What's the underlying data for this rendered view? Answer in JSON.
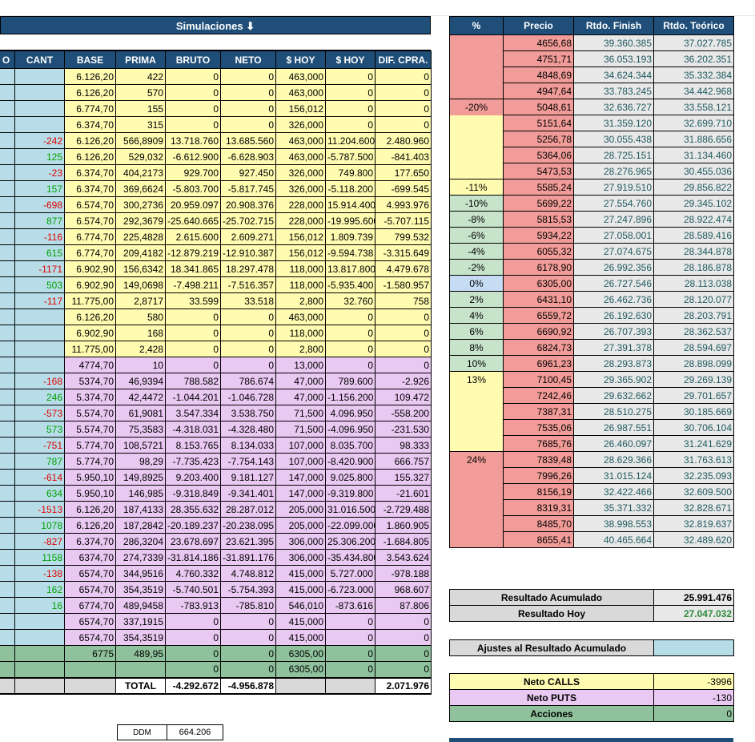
{
  "banner": {
    "title": "Simulaciones",
    "icon": "arrow-down-icon"
  },
  "left_headers": [
    "O",
    "CANT",
    "BASE",
    "PRIMA",
    "BRUTO",
    "NETO",
    "$ HOY",
    "$ HOY",
    "DIF. CPRA."
  ],
  "calls_rows": [
    [
      "",
      "",
      "6.126,20",
      "422",
      "0",
      "0",
      "463,000",
      "0",
      "0"
    ],
    [
      "",
      "",
      "6.126,20",
      "570",
      "0",
      "0",
      "463,000",
      "0",
      "0"
    ],
    [
      "",
      "",
      "6.774,70",
      "155",
      "0",
      "0",
      "156,012",
      "0",
      "0"
    ],
    [
      "",
      "",
      "6.374,70",
      "315",
      "0",
      "0",
      "326,000",
      "0",
      "0"
    ],
    [
      "",
      "-242",
      "6.126,20",
      "566,8909",
      "13.718.760",
      "13.685.560",
      "463,000",
      "11.204.600",
      "2.480.960"
    ],
    [
      "",
      "125",
      "6.126,20",
      "529,032",
      "-6.612.900",
      "-6.628.903",
      "463,000",
      "-5.787.500",
      "-841.403"
    ],
    [
      "",
      "-23",
      "6.374,70",
      "404,2173",
      "929.700",
      "927.450",
      "326,000",
      "749.800",
      "177.650"
    ],
    [
      "",
      "157",
      "6.374,70",
      "369,6624",
      "-5.803.700",
      "-5.817.745",
      "326,000",
      "-5.118.200",
      "-699.545"
    ],
    [
      "",
      "-698",
      "6.574,70",
      "300,2736",
      "20.959.097",
      "20.908.376",
      "228,000",
      "15.914.400",
      "4.993.976"
    ],
    [
      "",
      "877",
      "6.574,70",
      "292,3679",
      "-25.640.665",
      "-25.702.715",
      "228,000",
      "-19.995.600",
      "-5.707.115"
    ],
    [
      "",
      "-116",
      "6.774,70",
      "225,4828",
      "2.615.600",
      "2.609.271",
      "156,012",
      "1.809.739",
      "799.532"
    ],
    [
      "",
      "615",
      "6.774,70",
      "209,4182",
      "-12.879.219",
      "-12.910.387",
      "156,012",
      "-9.594.738",
      "-3.315.649"
    ],
    [
      "",
      "-1171",
      "6.902,90",
      "156,6342",
      "18.341.865",
      "18.297.478",
      "118,000",
      "13.817.800",
      "4.479.678"
    ],
    [
      "",
      "503",
      "6.902,90",
      "149,0698",
      "-7.498.211",
      "-7.516.357",
      "118,000",
      "-5.935.400",
      "-1.580.957"
    ],
    [
      "",
      "-117",
      "11.775,00",
      "2,8717",
      "33.599",
      "33.518",
      "2,800",
      "32.760",
      "758"
    ],
    [
      "",
      "",
      "6.126,20",
      "580",
      "0",
      "0",
      "463,000",
      "0",
      "0"
    ],
    [
      "",
      "",
      "6.902,90",
      "168",
      "0",
      "0",
      "118,000",
      "0",
      "0"
    ],
    [
      "",
      "",
      "11.775,00",
      "2,428",
      "0",
      "0",
      "2,800",
      "0",
      "0"
    ]
  ],
  "puts_rows": [
    [
      "",
      "",
      "4774,70",
      "10",
      "0",
      "0",
      "13,000",
      "0",
      "0"
    ],
    [
      "",
      "-168",
      "5374,70",
      "46,9394",
      "788.582",
      "786.674",
      "47,000",
      "789.600",
      "-2.926"
    ],
    [
      "",
      "246",
      "5.374,70",
      "42,4472",
      "-1.044.201",
      "-1.046.728",
      "47,000",
      "-1.156.200",
      "109.472"
    ],
    [
      "",
      "-573",
      "5.574,70",
      "61,9081",
      "3.547.334",
      "3.538.750",
      "71,500",
      "4.096.950",
      "-558.200"
    ],
    [
      "",
      "573",
      "5.574,70",
      "75,3583",
      "-4.318.031",
      "-4.328.480",
      "71,500",
      "-4.096.950",
      "-231.530"
    ],
    [
      "",
      "-751",
      "5.774,70",
      "108,5721",
      "8.153.765",
      "8.134.033",
      "107,000",
      "8.035.700",
      "98.333"
    ],
    [
      "",
      "787",
      "5.774,70",
      "98,29",
      "-7.735.423",
      "-7.754.143",
      "107,000",
      "-8.420.900",
      "666.757"
    ],
    [
      "",
      "-614",
      "5.950,10",
      "149,8925",
      "9.203.400",
      "9.181.127",
      "147,000",
      "9.025.800",
      "155.327"
    ],
    [
      "",
      "634",
      "5.950,10",
      "146,985",
      "-9.318.849",
      "-9.341.401",
      "147,000",
      "-9.319.800",
      "-21.601"
    ],
    [
      "",
      "-1513",
      "6.126,20",
      "187,4133",
      "28.355.632",
      "28.287.012",
      "205,000",
      "31.016.500",
      "-2.729.488"
    ],
    [
      "",
      "1078",
      "6.126,20",
      "187,2842",
      "-20.189.237",
      "-20.238.095",
      "205,000",
      "-22.099.000",
      "1.860.905"
    ],
    [
      "",
      "-827",
      "6.374,70",
      "286,3204",
      "23.678.697",
      "23.621.395",
      "306,000",
      "25.306.200",
      "-1.684.805"
    ],
    [
      "",
      "1158",
      "6374,70",
      "274,7339",
      "-31.814.186",
      "-31.891.176",
      "306,000",
      "-35.434.800",
      "3.543.624"
    ],
    [
      "",
      "-138",
      "6574,70",
      "344,9516",
      "4.760.332",
      "4.748.812",
      "415,000",
      "5.727.000",
      "-978.188"
    ],
    [
      "",
      "162",
      "6574,70",
      "354,3519",
      "-5.740.501",
      "-5.754.393",
      "415,000",
      "-6.723.000",
      "968.607"
    ],
    [
      "",
      "16",
      "6774,70",
      "489,9458",
      "-783.913",
      "-785.810",
      "546,010",
      "-873.616",
      "87.806"
    ],
    [
      "",
      "",
      "6574,70",
      "337,1915",
      "0",
      "0",
      "415,000",
      "0",
      "0"
    ],
    [
      "",
      "",
      "6574,70",
      "354,3519",
      "0",
      "0",
      "415,000",
      "0",
      "0"
    ]
  ],
  "stock_rows": [
    [
      "",
      "",
      "6775",
      "489,95",
      "0",
      "0",
      "6305,00",
      "0",
      "0"
    ],
    [
      "",
      "",
      "",
      "",
      "0",
      "0",
      "6305,00",
      "0",
      "0"
    ]
  ],
  "totals": {
    "label": "TOTAL",
    "bruto": "-4.292.672",
    "neto": "-4.956.878",
    "dif": "2.071.976"
  },
  "ddm": {
    "label": "DDM",
    "value": "664.206"
  },
  "right_headers": [
    "%",
    "Precio",
    "Rtdo. Finish",
    "Rtdo. Teórico"
  ],
  "right_rows": [
    [
      "",
      "4656,68",
      "39.360.385",
      "37.027.785"
    ],
    [
      "",
      "4751,71",
      "36.053.193",
      "36.202.351"
    ],
    [
      "",
      "4848,69",
      "34.624.344",
      "35.332.384"
    ],
    [
      "",
      "4947,64",
      "33.783.245",
      "34.442.968"
    ],
    [
      "-20%",
      "5048,61",
      "32.636.727",
      "33.558.121"
    ],
    [
      "",
      "5151,64",
      "31.359.120",
      "32.699.710"
    ],
    [
      "",
      "5256,78",
      "30.055.438",
      "31.886.656"
    ],
    [
      "",
      "5364,06",
      "28.725.151",
      "31.134.460"
    ],
    [
      "",
      "5473,53",
      "28.276.965",
      "30.455.036"
    ],
    [
      "-11%",
      "5585,24",
      "27.919.510",
      "29.856.822"
    ],
    [
      "-10%",
      "5699,22",
      "27.554.760",
      "29.345.102"
    ],
    [
      "-8%",
      "5815,53",
      "27.247.896",
      "28.922.474"
    ],
    [
      "-6%",
      "5934,22",
      "27.058.001",
      "28.589.416"
    ],
    [
      "-4%",
      "6055,32",
      "27.074.675",
      "28.344.878"
    ],
    [
      "-2%",
      "6178,90",
      "26.992.356",
      "28.186.878"
    ],
    [
      "0%",
      "6305,00",
      "26.727.546",
      "28.113.038"
    ],
    [
      "2%",
      "6431,10",
      "26.462.736",
      "28.120.077"
    ],
    [
      "4%",
      "6559,72",
      "26.192.630",
      "28.203.791"
    ],
    [
      "6%",
      "6690,92",
      "26.707.393",
      "28.362.537"
    ],
    [
      "8%",
      "6824,73",
      "27.391.378",
      "28.594.697"
    ],
    [
      "10%",
      "6961,23",
      "28.293.873",
      "28.898.099"
    ],
    [
      "13%",
      "7100,45",
      "29.365.902",
      "29.269.139"
    ],
    [
      "",
      "7242,46",
      "29.632.662",
      "29.701.657"
    ],
    [
      "",
      "7387,31",
      "28.510.275",
      "30.185.669"
    ],
    [
      "",
      "7535,06",
      "26.987.551",
      "30.706.104"
    ],
    [
      "",
      "7685,76",
      "26.460.097",
      "31.241.629"
    ],
    [
      "24%",
      "7839,48",
      "28.629.366",
      "31.763.613"
    ],
    [
      "",
      "7996,26",
      "31.015.124",
      "32.235.093"
    ],
    [
      "",
      "8156,19",
      "32.422.466",
      "32.609.500"
    ],
    [
      "",
      "8319,31",
      "35.371.332",
      "32.828.671"
    ],
    [
      "",
      "8485,70",
      "38.998.553",
      "32.819.637"
    ],
    [
      "",
      "8655,41",
      "40.465.664",
      "32.489.620"
    ]
  ],
  "summary": {
    "acumulado_label": "Resultado Acumulado",
    "acumulado_value": "25.991.476",
    "hoy_label": "Resultado Hoy",
    "hoy_value": "27.047.032",
    "ajustes_label": "Ajustes al Resultado Acumulado",
    "ajustes_value": ""
  },
  "netos": [
    {
      "label": "Neto CALLS",
      "value": "-3996"
    },
    {
      "label": "Neto PUTS",
      "value": "-130"
    },
    {
      "label": "Acciones",
      "value": "0"
    }
  ],
  "colors": {
    "header": "#1f4e79",
    "calls": "#fffbb0",
    "puts": "#e9c8f2",
    "stock": "#8fc29c",
    "cant": "#b7dee8",
    "loss": "#f19c98",
    "gain": "#c7e3ca"
  }
}
